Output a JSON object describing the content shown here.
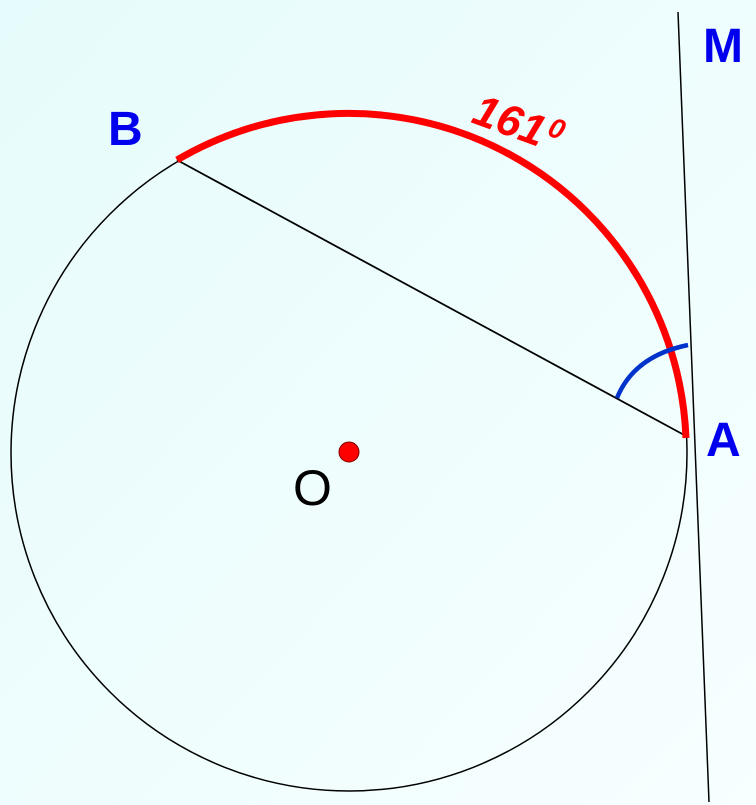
{
  "points": {
    "M": "M",
    "B": "B",
    "A": "A",
    "O": "O"
  },
  "arc": {
    "measure": 161,
    "degree_mark": "0"
  }
}
